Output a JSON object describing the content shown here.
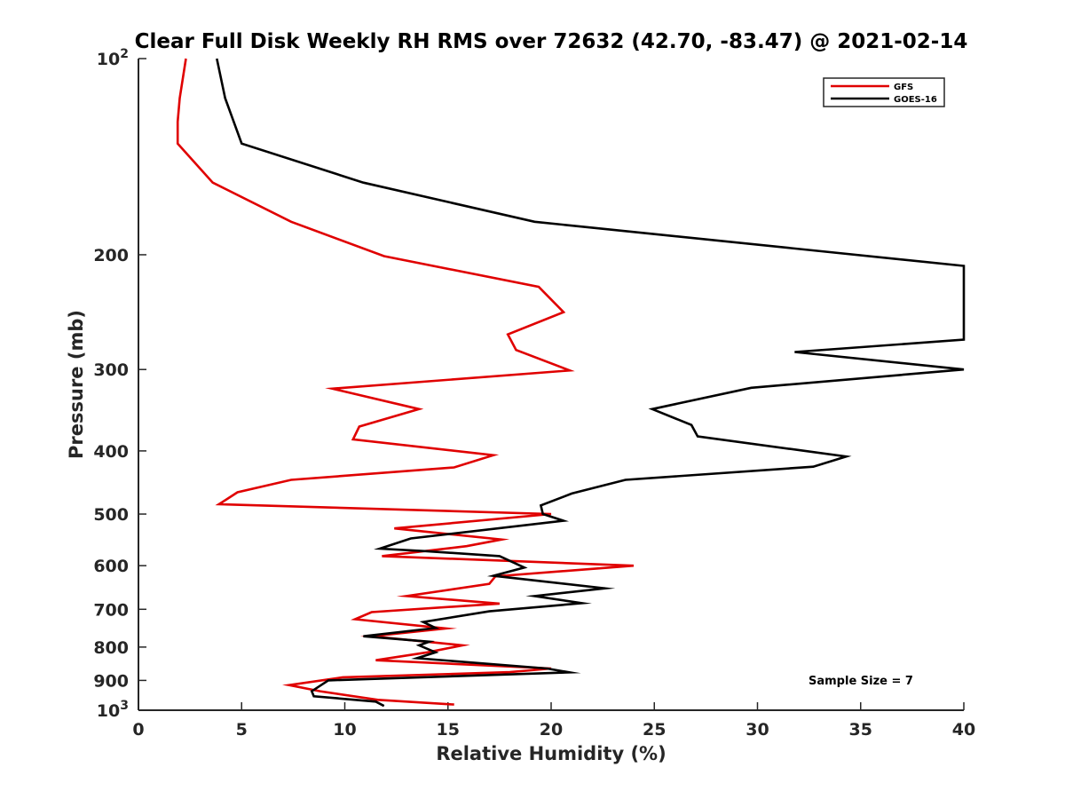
{
  "chart_data": {
    "type": "line",
    "title": "Clear Full Disk Weekly RH RMS over 72632 (42.70, -83.47) @ 2021-02-14",
    "xlabel": "Relative Humidity (%)",
    "ylabel": "Pressure (mb)",
    "xlim": [
      0,
      40
    ],
    "ylim": [
      100,
      1000
    ],
    "y_scale": "log",
    "y_reversed": true,
    "grid": false,
    "legend_position": "top-right",
    "x_ticks": [
      "0",
      "5",
      "10",
      "15",
      "20",
      "25",
      "30",
      "35",
      "40"
    ],
    "y_ticks": [
      {
        "value": 100,
        "base": "10",
        "exp": "2"
      },
      {
        "value": 200,
        "label": "200"
      },
      {
        "value": 300,
        "label": "300"
      },
      {
        "value": 400,
        "label": "400"
      },
      {
        "value": 500,
        "label": "500"
      },
      {
        "value": 600,
        "label": "600"
      },
      {
        "value": 700,
        "label": "700"
      },
      {
        "value": 800,
        "label": "800"
      },
      {
        "value": 900,
        "label": "900"
      },
      {
        "value": 1000,
        "base": "10",
        "exp": "3"
      }
    ],
    "annotation": "Sample Size = 7",
    "series": [
      {
        "name": "GFS",
        "color": "#e00000",
        "points": [
          [
            2.3,
            100
          ],
          [
            2.0,
            115
          ],
          [
            1.9,
            125
          ],
          [
            1.9,
            135
          ],
          [
            3.6,
            155
          ],
          [
            7.4,
            178
          ],
          [
            11.9,
            201
          ],
          [
            19.4,
            224
          ],
          [
            20.6,
            245
          ],
          [
            17.9,
            265
          ],
          [
            18.3,
            280
          ],
          [
            20.9,
            301
          ],
          [
            9.4,
            321
          ],
          [
            13.6,
            345
          ],
          [
            10.7,
            367
          ],
          [
            10.4,
            384
          ],
          [
            17.2,
            406
          ],
          [
            15.3,
            424
          ],
          [
            7.4,
            443
          ],
          [
            4.8,
            463
          ],
          [
            3.9,
            483
          ],
          [
            20.0,
            500
          ],
          [
            12.4,
            526
          ],
          [
            17.6,
            547
          ],
          [
            15.9,
            560
          ],
          [
            11.8,
            580
          ],
          [
            24.0,
            600
          ],
          [
            17.3,
            623
          ],
          [
            17.0,
            640
          ],
          [
            13.0,
            668
          ],
          [
            17.5,
            686
          ],
          [
            11.3,
            707
          ],
          [
            10.5,
            725
          ],
          [
            14.9,
            749
          ],
          [
            11.3,
            770
          ],
          [
            15.7,
            795
          ],
          [
            14.0,
            815
          ],
          [
            11.5,
            838
          ],
          [
            20.0,
            863
          ],
          [
            18.0,
            874
          ],
          [
            9.9,
            890
          ],
          [
            7.3,
            915
          ],
          [
            8.8,
            935
          ],
          [
            11.6,
            964
          ],
          [
            15.3,
            980
          ]
        ]
      },
      {
        "name": "GOES-16",
        "color": "#000000",
        "points": [
          [
            3.8,
            100
          ],
          [
            4.2,
            115
          ],
          [
            5.0,
            135
          ],
          [
            10.9,
            155
          ],
          [
            19.2,
            178
          ],
          [
            40.0,
            208
          ],
          [
            40.0,
            270
          ],
          [
            31.8,
            282
          ],
          [
            40.0,
            300
          ],
          [
            29.7,
            320
          ],
          [
            24.9,
            345
          ],
          [
            26.8,
            365
          ],
          [
            27.1,
            380
          ],
          [
            34.3,
            408
          ],
          [
            32.7,
            423
          ],
          [
            23.6,
            443
          ],
          [
            21.0,
            465
          ],
          [
            19.5,
            485
          ],
          [
            19.6,
            500
          ],
          [
            20.6,
            512
          ],
          [
            13.2,
            545
          ],
          [
            11.7,
            565
          ],
          [
            13.9,
            570
          ],
          [
            17.5,
            580
          ],
          [
            18.7,
            604
          ],
          [
            17.2,
            622
          ],
          [
            22.6,
            650
          ],
          [
            19.2,
            668
          ],
          [
            21.5,
            685
          ],
          [
            17.0,
            705
          ],
          [
            13.8,
            732
          ],
          [
            14.4,
            748
          ],
          [
            10.9,
            770
          ],
          [
            14.1,
            785
          ],
          [
            13.6,
            795
          ],
          [
            14.4,
            815
          ],
          [
            13.5,
            832
          ],
          [
            19.8,
            863
          ],
          [
            20.9,
            875
          ],
          [
            9.2,
            900
          ],
          [
            8.4,
            935
          ],
          [
            8.5,
            952
          ],
          [
            11.5,
            970
          ],
          [
            11.9,
            985
          ]
        ]
      }
    ]
  }
}
